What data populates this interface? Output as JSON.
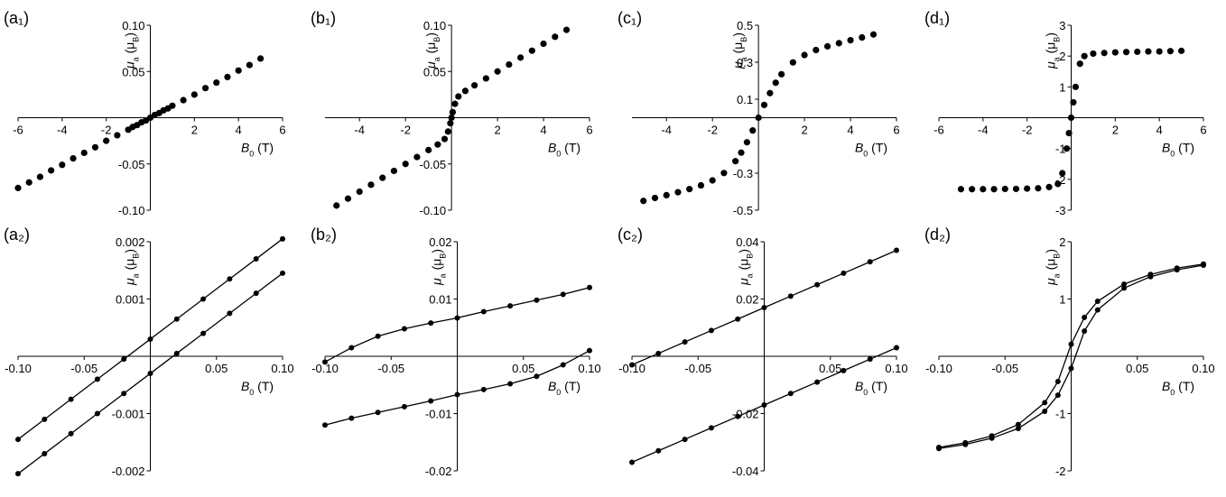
{
  "chart_data": [
    {
      "type": "scatter",
      "label": "(a₁)",
      "x_label": [
        "B",
        "0",
        " (T)"
      ],
      "y_label": [
        "μ",
        "a",
        " (μ",
        "B",
        ")"
      ],
      "color": "#000000",
      "xlim": [
        -6,
        6
      ],
      "ylim": [
        -0.1,
        0.1
      ],
      "xticks": [
        -6,
        -4,
        -2,
        2,
        4,
        6
      ],
      "yticks": [
        {
          "value": 0.1,
          "label": "0.10"
        },
        0.05,
        -0.05,
        {
          "value": -0.1,
          "label": "-0.10"
        }
      ],
      "series": [
        {
          "x": [
            -6,
            -5.5,
            -5,
            -4.5,
            -4,
            -3.5,
            -3,
            -2.5,
            -2,
            -1.5,
            -1,
            -0.8,
            -0.6,
            -0.4,
            -0.2,
            0,
            0.2,
            0.4,
            0.6,
            0.8,
            1,
            1.5,
            2,
            2.5,
            3,
            3.5,
            4,
            4.5,
            5
          ],
          "values": [
            -0.076,
            -0.07,
            -0.064,
            -0.057,
            -0.051,
            -0.044,
            -0.038,
            -0.032,
            -0.025,
            -0.019,
            -0.013,
            -0.01,
            -0.008,
            -0.005,
            -0.003,
            0,
            0.003,
            0.005,
            0.008,
            0.01,
            0.013,
            0.019,
            0.025,
            0.032,
            0.038,
            0.044,
            0.051,
            0.057,
            0.064
          ]
        }
      ]
    },
    {
      "type": "scatter",
      "label": "(b₁)",
      "x_label": [
        "B",
        "0",
        " (T)"
      ],
      "y_label": [
        "μ",
        "a",
        " (μ",
        "B",
        ")"
      ],
      "color": "#000000",
      "xlim": [
        -5.5,
        6
      ],
      "ylim": [
        -0.1,
        0.1
      ],
      "xticks": [
        -4,
        -2,
        2,
        4,
        6
      ],
      "yticks": [
        {
          "value": 0.1,
          "label": "0.10"
        },
        0.05,
        -0.05,
        {
          "value": -0.1,
          "label": "-0.10"
        }
      ],
      "series": [
        {
          "x": [
            -5,
            -4.5,
            -4,
            -3.5,
            -3,
            -2.5,
            -2,
            -1.5,
            -1,
            -0.6,
            -0.3,
            -0.15,
            -0.05,
            0,
            0.05,
            0.15,
            0.3,
            0.6,
            1,
            1.5,
            2,
            2.5,
            3,
            3.5,
            4,
            4.5,
            5
          ],
          "values": [
            -0.095,
            -0.0875,
            -0.08,
            -0.0725,
            -0.065,
            -0.0575,
            -0.05,
            -0.0425,
            -0.035,
            -0.029,
            -0.023,
            -0.015,
            -0.006,
            0,
            0.006,
            0.015,
            0.023,
            0.029,
            0.035,
            0.0425,
            0.05,
            0.0575,
            0.065,
            0.0725,
            0.08,
            0.0875,
            0.095
          ]
        }
      ]
    },
    {
      "type": "scatter",
      "label": "(c₁)",
      "x_label": [
        "B",
        "0",
        " (T)"
      ],
      "y_label": [
        "μ",
        "a",
        " (μ",
        "B",
        ")"
      ],
      "color": "#000000",
      "xlim": [
        -5.5,
        6
      ],
      "ylim": [
        -0.5,
        0.5
      ],
      "xticks": [
        -4,
        -2,
        2,
        4,
        6
      ],
      "yticks": [
        0.5,
        0.3,
        0.1,
        -0.3,
        -0.5
      ],
      "series": [
        {
          "x": [
            -5,
            -4.5,
            -4,
            -3.5,
            -3,
            -2.5,
            -2,
            -1.5,
            -1,
            -0.75,
            -0.5,
            -0.25,
            0,
            0.25,
            0.5,
            0.75,
            1,
            1.5,
            2,
            2.5,
            3,
            3.5,
            4,
            4.5,
            5
          ],
          "values": [
            -0.45,
            -0.434,
            -0.419,
            -0.403,
            -0.386,
            -0.366,
            -0.339,
            -0.299,
            -0.235,
            -0.189,
            -0.133,
            -0.069,
            0,
            0.069,
            0.133,
            0.189,
            0.235,
            0.299,
            0.339,
            0.366,
            0.386,
            0.403,
            0.419,
            0.434,
            0.45
          ]
        }
      ]
    },
    {
      "type": "scatter",
      "label": "(d₁)",
      "x_label": [
        "B",
        "0",
        " (T)"
      ],
      "y_label": [
        "μ",
        "a",
        " (μ",
        "B",
        ")"
      ],
      "color": "#000000",
      "xlim": [
        -6,
        6
      ],
      "ylim": [
        -3,
        3
      ],
      "xticks": [
        -6,
        -4,
        -2,
        2,
        4,
        6
      ],
      "yticks": [
        3,
        2,
        1,
        -1,
        -2,
        -3
      ],
      "series": [
        {
          "x": [
            -5,
            -4.5,
            -4,
            -3.5,
            -3,
            -2.5,
            -2,
            -1.5,
            -1,
            -0.6,
            -0.4,
            -0.2,
            -0.1,
            0,
            0.1,
            0.2,
            0.4,
            0.6,
            1,
            1.5,
            2,
            2.5,
            3,
            3.5,
            4,
            4.5,
            5
          ],
          "values": [
            -2.32,
            -2.32,
            -2.32,
            -2.32,
            -2.31,
            -2.31,
            -2.3,
            -2.29,
            -2.25,
            -2.15,
            -1.8,
            -1,
            -0.5,
            0,
            0.5,
            1,
            1.75,
            2,
            2.08,
            2.1,
            2.12,
            2.13,
            2.14,
            2.15,
            2.15,
            2.16,
            2.17
          ]
        }
      ]
    },
    {
      "type": "line",
      "label": "(a₂)",
      "x_label": [
        "B",
        "0",
        " (T)"
      ],
      "y_label": [
        "μ",
        "a",
        " (μ",
        "B",
        ")"
      ],
      "color": "#000000",
      "xlim": [
        -0.1,
        0.1
      ],
      "ylim": [
        -0.002,
        0.002
      ],
      "xticks": [
        {
          "value": -0.1,
          "label": "-0.10"
        },
        -0.05,
        0.05,
        {
          "value": 0.1,
          "label": "0.10"
        }
      ],
      "yticks": [
        0.002,
        0.001,
        -0.001,
        -0.002
      ],
      "series": [
        {
          "x": [
            -0.1,
            -0.08,
            -0.06,
            -0.04,
            -0.02,
            0,
            0.02,
            0.04,
            0.06,
            0.08,
            0.1
          ],
          "values": [
            -0.00145,
            -0.0011,
            -0.00075,
            -0.0004,
            -5e-05,
            0.0003,
            0.00065,
            0.001,
            0.00135,
            0.0017,
            0.00205
          ]
        },
        {
          "x": [
            -0.1,
            -0.08,
            -0.06,
            -0.04,
            -0.02,
            0,
            0.02,
            0.04,
            0.06,
            0.08,
            0.1
          ],
          "values": [
            -0.00205,
            -0.0017,
            -0.00135,
            -0.001,
            -0.00065,
            -0.0003,
            5e-05,
            0.0004,
            0.00075,
            0.0011,
            0.00145
          ]
        }
      ]
    },
    {
      "type": "line",
      "label": "(b₂)",
      "x_label": [
        "B",
        "0",
        " (T)"
      ],
      "y_label": [
        "μ",
        "a",
        " (μ",
        "B",
        ")"
      ],
      "color": "#000000",
      "xlim": [
        -0.1,
        0.1
      ],
      "ylim": [
        -0.02,
        0.02
      ],
      "xticks": [
        {
          "value": -0.1,
          "label": "-0.10"
        },
        -0.05,
        0.05,
        {
          "value": 0.1,
          "label": "0.10"
        }
      ],
      "yticks": [
        0.02,
        0.01,
        -0.01,
        -0.02
      ],
      "series": [
        {
          "x": [
            -0.1,
            -0.08,
            -0.06,
            -0.04,
            -0.02,
            0,
            0.02,
            0.04,
            0.06,
            0.08,
            0.1
          ],
          "values": [
            -0.001,
            0.0015,
            0.0035,
            0.0048,
            0.0058,
            0.0067,
            0.0078,
            0.0088,
            0.0098,
            0.0108,
            0.012
          ]
        },
        {
          "x": [
            -0.1,
            -0.08,
            -0.06,
            -0.04,
            -0.02,
            0,
            0.02,
            0.04,
            0.06,
            0.08,
            0.1
          ],
          "values": [
            -0.012,
            -0.0108,
            -0.0098,
            -0.0088,
            -0.0078,
            -0.0067,
            -0.0058,
            -0.0048,
            -0.0035,
            -0.0015,
            0.001
          ]
        }
      ]
    },
    {
      "type": "line",
      "label": "(c₂)",
      "x_label": [
        "B",
        "0",
        " (T)"
      ],
      "y_label": [
        "μ",
        "a",
        " (μ",
        "B",
        ")"
      ],
      "color": "#000000",
      "xlim": [
        -0.1,
        0.1
      ],
      "ylim": [
        -0.04,
        0.04
      ],
      "xticks": [
        {
          "value": -0.1,
          "label": "-0.10"
        },
        -0.05,
        0.05,
        {
          "value": 0.1,
          "label": "0.10"
        }
      ],
      "yticks": [
        0.04,
        0.02,
        -0.02,
        -0.04
      ],
      "series": [
        {
          "x": [
            -0.1,
            -0.08,
            -0.06,
            -0.04,
            -0.02,
            0,
            0.02,
            0.04,
            0.06,
            0.08,
            0.1
          ],
          "values": [
            -0.003,
            0.001,
            0.005,
            0.009,
            0.013,
            0.017,
            0.021,
            0.025,
            0.029,
            0.033,
            0.037
          ]
        },
        {
          "x": [
            -0.1,
            -0.08,
            -0.06,
            -0.04,
            -0.02,
            0,
            0.02,
            0.04,
            0.06,
            0.08,
            0.1
          ],
          "values": [
            -0.037,
            -0.033,
            -0.029,
            -0.025,
            -0.021,
            -0.017,
            -0.013,
            -0.009,
            -0.005,
            -0.001,
            0.003
          ]
        }
      ]
    },
    {
      "type": "line",
      "label": "(d₂)",
      "x_label": [
        "B",
        "0",
        " (T)"
      ],
      "y_label": [
        "μ",
        "a",
        " (μ",
        "B",
        ")"
      ],
      "color": "#000000",
      "xlim": [
        -0.1,
        0.1
      ],
      "ylim": [
        -2,
        2
      ],
      "xticks": [
        {
          "value": -0.1,
          "label": "-0.10"
        },
        -0.05,
        0.05,
        {
          "value": 0.1,
          "label": "0.10"
        }
      ],
      "yticks": [
        2,
        1,
        -1,
        -2
      ],
      "series": [
        {
          "x": [
            -0.1,
            -0.08,
            -0.06,
            -0.04,
            -0.02,
            -0.01,
            0,
            0.01,
            0.02,
            0.04,
            0.06,
            0.08,
            0.1
          ],
          "values": [
            -1.59,
            -1.51,
            -1.39,
            -1.19,
            -0.81,
            -0.44,
            0.21,
            0.68,
            0.96,
            1.26,
            1.43,
            1.54,
            1.61
          ]
        },
        {
          "x": [
            -0.1,
            -0.08,
            -0.06,
            -0.04,
            -0.02,
            -0.01,
            0,
            0.01,
            0.02,
            0.04,
            0.06,
            0.08,
            0.1
          ],
          "values": [
            -1.61,
            -1.54,
            -1.43,
            -1.26,
            -0.96,
            -0.68,
            -0.21,
            0.44,
            0.81,
            1.19,
            1.39,
            1.51,
            1.59
          ]
        }
      ]
    }
  ]
}
